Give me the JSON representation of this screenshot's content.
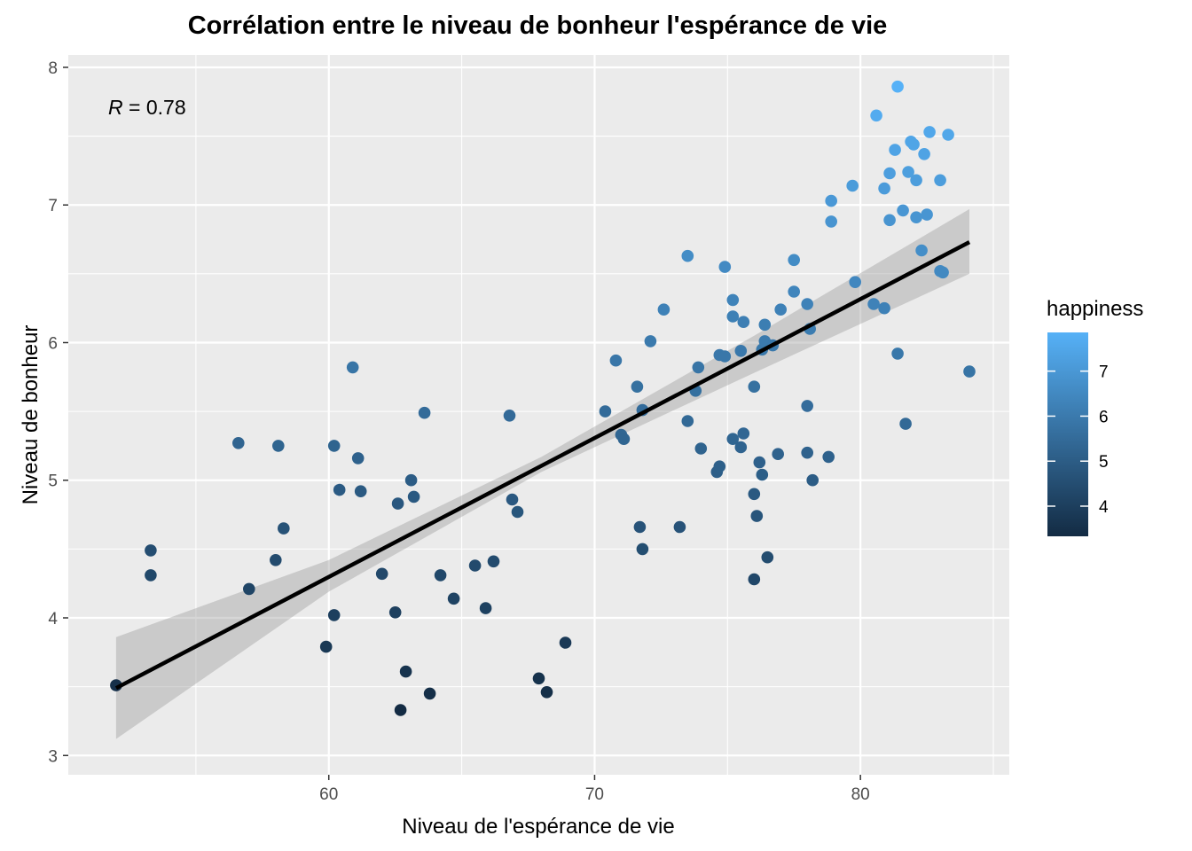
{
  "chart_data": {
    "type": "scatter",
    "title": "Corrélation entre le niveau de bonheur l'espérance de vie",
    "xlabel": "Niveau de l'espérance de vie",
    "ylabel": "Niveau de bonheur",
    "xlim": [
      50.2,
      85.6
    ],
    "ylim": [
      2.86,
      8.09
    ],
    "xticks": [
      60,
      70,
      80
    ],
    "yticks": [
      3,
      4,
      5,
      6,
      7,
      8
    ],
    "grid": true,
    "annotation": {
      "label": "R",
      "value": "0.78"
    },
    "regression": {
      "x": [
        52.0,
        84.1
      ],
      "y": [
        3.49,
        6.73
      ],
      "band": [
        {
          "x": 52.0,
          "lo": 3.12,
          "hi": 3.86
        },
        {
          "x": 60.0,
          "lo": 4.19,
          "hi": 4.42
        },
        {
          "x": 68.0,
          "lo": 5.06,
          "hi": 5.17
        },
        {
          "x": 76.0,
          "lo": 5.78,
          "hi": 6.05
        },
        {
          "x": 84.1,
          "lo": 6.5,
          "hi": 6.97
        }
      ]
    },
    "legend": {
      "title": "happiness",
      "position": "right",
      "ticks": [
        4,
        5,
        6,
        7
      ],
      "range": [
        3.33,
        7.86
      ],
      "color_low": "#132b43",
      "color_high": "#56b1f7"
    },
    "points": [
      {
        "x": 52.0,
        "y": 3.51
      },
      {
        "x": 53.3,
        "y": 4.49
      },
      {
        "x": 53.3,
        "y": 4.31
      },
      {
        "x": 56.6,
        "y": 5.27
      },
      {
        "x": 57.0,
        "y": 4.21
      },
      {
        "x": 58.0,
        "y": 4.42
      },
      {
        "x": 58.1,
        "y": 5.25
      },
      {
        "x": 58.3,
        "y": 4.65
      },
      {
        "x": 59.9,
        "y": 3.79
      },
      {
        "x": 60.2,
        "y": 4.02
      },
      {
        "x": 60.2,
        "y": 5.25
      },
      {
        "x": 60.4,
        "y": 4.93
      },
      {
        "x": 60.9,
        "y": 5.82
      },
      {
        "x": 61.1,
        "y": 5.16
      },
      {
        "x": 61.2,
        "y": 4.92
      },
      {
        "x": 62.0,
        "y": 4.32
      },
      {
        "x": 62.5,
        "y": 4.04
      },
      {
        "x": 62.6,
        "y": 4.83
      },
      {
        "x": 62.7,
        "y": 3.33
      },
      {
        "x": 62.9,
        "y": 3.61
      },
      {
        "x": 63.1,
        "y": 5.0
      },
      {
        "x": 63.2,
        "y": 4.88
      },
      {
        "x": 63.6,
        "y": 5.49
      },
      {
        "x": 63.8,
        "y": 3.45
      },
      {
        "x": 64.2,
        "y": 4.31
      },
      {
        "x": 64.7,
        "y": 4.14
      },
      {
        "x": 65.5,
        "y": 4.38
      },
      {
        "x": 65.9,
        "y": 4.07
      },
      {
        "x": 66.2,
        "y": 4.41
      },
      {
        "x": 66.8,
        "y": 5.47
      },
      {
        "x": 66.9,
        "y": 4.86
      },
      {
        "x": 67.1,
        "y": 4.77
      },
      {
        "x": 67.9,
        "y": 3.56
      },
      {
        "x": 68.2,
        "y": 3.46
      },
      {
        "x": 68.9,
        "y": 3.82
      },
      {
        "x": 70.4,
        "y": 5.5
      },
      {
        "x": 70.8,
        "y": 5.87
      },
      {
        "x": 71.0,
        "y": 5.33
      },
      {
        "x": 71.1,
        "y": 5.3
      },
      {
        "x": 71.6,
        "y": 5.68
      },
      {
        "x": 71.7,
        "y": 4.66
      },
      {
        "x": 71.8,
        "y": 4.5
      },
      {
        "x": 71.8,
        "y": 5.51
      },
      {
        "x": 72.1,
        "y": 6.01
      },
      {
        "x": 72.6,
        "y": 6.24
      },
      {
        "x": 73.2,
        "y": 4.66
      },
      {
        "x": 73.5,
        "y": 6.63
      },
      {
        "x": 73.5,
        "y": 5.43
      },
      {
        "x": 73.8,
        "y": 5.65
      },
      {
        "x": 73.9,
        "y": 5.82
      },
      {
        "x": 74.0,
        "y": 5.23
      },
      {
        "x": 74.6,
        "y": 5.06
      },
      {
        "x": 74.7,
        "y": 5.1
      },
      {
        "x": 74.7,
        "y": 5.91
      },
      {
        "x": 74.9,
        "y": 5.9
      },
      {
        "x": 74.9,
        "y": 6.55
      },
      {
        "x": 75.2,
        "y": 6.31
      },
      {
        "x": 75.2,
        "y": 6.19
      },
      {
        "x": 75.2,
        "y": 5.3
      },
      {
        "x": 75.5,
        "y": 5.94
      },
      {
        "x": 75.5,
        "y": 5.24
      },
      {
        "x": 75.6,
        "y": 5.34
      },
      {
        "x": 75.6,
        "y": 6.15
      },
      {
        "x": 76.0,
        "y": 4.28
      },
      {
        "x": 76.0,
        "y": 4.9
      },
      {
        "x": 76.0,
        "y": 5.68
      },
      {
        "x": 76.1,
        "y": 4.74
      },
      {
        "x": 76.2,
        "y": 5.13
      },
      {
        "x": 76.3,
        "y": 5.04
      },
      {
        "x": 76.3,
        "y": 5.95
      },
      {
        "x": 76.4,
        "y": 6.01
      },
      {
        "x": 76.4,
        "y": 6.13
      },
      {
        "x": 76.5,
        "y": 4.44
      },
      {
        "x": 76.7,
        "y": 5.98
      },
      {
        "x": 76.9,
        "y": 5.19
      },
      {
        "x": 77.0,
        "y": 6.24
      },
      {
        "x": 77.5,
        "y": 6.37
      },
      {
        "x": 77.5,
        "y": 6.6
      },
      {
        "x": 78.0,
        "y": 5.2
      },
      {
        "x": 78.0,
        "y": 5.54
      },
      {
        "x": 78.0,
        "y": 6.28
      },
      {
        "x": 78.1,
        "y": 6.1
      },
      {
        "x": 78.2,
        "y": 5.0
      },
      {
        "x": 78.8,
        "y": 5.17
      },
      {
        "x": 78.9,
        "y": 6.88
      },
      {
        "x": 78.9,
        "y": 7.03
      },
      {
        "x": 79.7,
        "y": 7.14
      },
      {
        "x": 79.8,
        "y": 6.44
      },
      {
        "x": 80.5,
        "y": 6.28
      },
      {
        "x": 80.6,
        "y": 7.65
      },
      {
        "x": 80.9,
        "y": 6.25
      },
      {
        "x": 80.9,
        "y": 7.12
      },
      {
        "x": 81.1,
        "y": 6.89
      },
      {
        "x": 81.1,
        "y": 7.23
      },
      {
        "x": 81.3,
        "y": 7.4
      },
      {
        "x": 81.4,
        "y": 5.92
      },
      {
        "x": 81.4,
        "y": 7.86
      },
      {
        "x": 81.6,
        "y": 6.96
      },
      {
        "x": 81.7,
        "y": 5.41
      },
      {
        "x": 81.8,
        "y": 7.24
      },
      {
        "x": 81.9,
        "y": 7.46
      },
      {
        "x": 82.0,
        "y": 7.44
      },
      {
        "x": 82.1,
        "y": 7.18
      },
      {
        "x": 82.1,
        "y": 6.91
      },
      {
        "x": 82.3,
        "y": 6.67
      },
      {
        "x": 82.4,
        "y": 7.37
      },
      {
        "x": 82.5,
        "y": 6.93
      },
      {
        "x": 82.6,
        "y": 7.53
      },
      {
        "x": 83.0,
        "y": 6.52
      },
      {
        "x": 83.0,
        "y": 7.18
      },
      {
        "x": 83.1,
        "y": 6.51
      },
      {
        "x": 83.3,
        "y": 7.51
      },
      {
        "x": 84.1,
        "y": 5.79
      }
    ]
  }
}
